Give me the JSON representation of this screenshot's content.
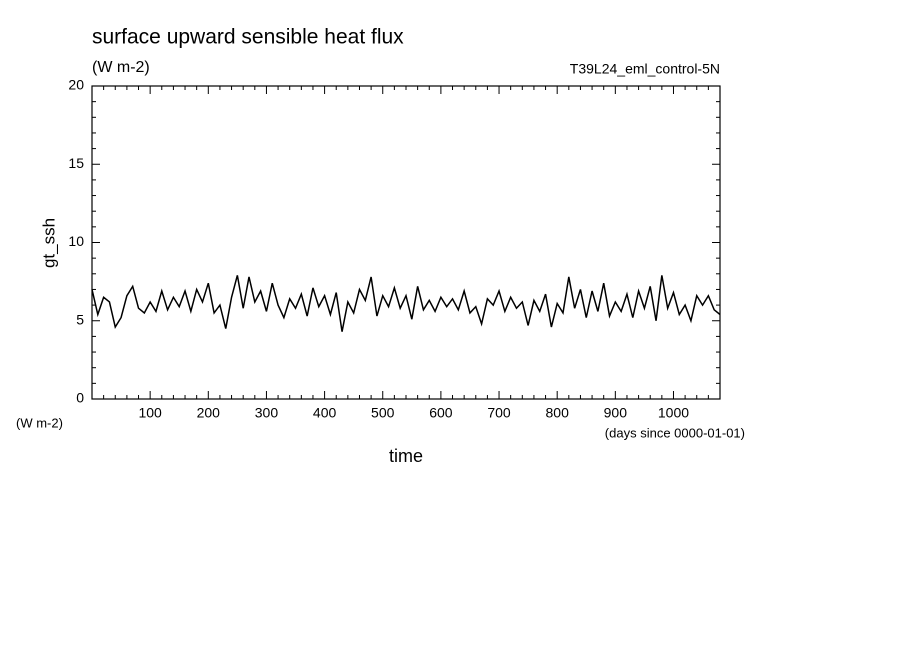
{
  "chart_data": {
    "type": "line",
    "title": "surface upward sensible heat flux",
    "subtitle": "(W m-2)",
    "annotation": "T39L24_eml_control-5N",
    "y_label": "gt_ssh",
    "y_units": "(W m-2)",
    "x_label": "time",
    "x_units": "(days since 0000-01-01)",
    "x": [
      0,
      10,
      20,
      30,
      40,
      50,
      60,
      70,
      80,
      90,
      100,
      110,
      120,
      130,
      140,
      150,
      160,
      170,
      180,
      190,
      200,
      210,
      220,
      230,
      240,
      250,
      260,
      270,
      280,
      290,
      300,
      310,
      320,
      330,
      340,
      350,
      360,
      370,
      380,
      390,
      400,
      410,
      420,
      430,
      440,
      450,
      460,
      470,
      480,
      490,
      500,
      510,
      520,
      530,
      540,
      550,
      560,
      570,
      580,
      590,
      600,
      610,
      620,
      630,
      640,
      650,
      660,
      670,
      680,
      690,
      700,
      710,
      720,
      730,
      740,
      750,
      760,
      770,
      780,
      790,
      800,
      810,
      820,
      830,
      840,
      850,
      860,
      870,
      880,
      890,
      900,
      910,
      920,
      930,
      940,
      950,
      960,
      970,
      980,
      990,
      1000,
      1010,
      1020,
      1030,
      1040,
      1050,
      1060,
      1070,
      1080
    ],
    "series": [
      {
        "color": "#000000",
        "values": [
          7.0,
          5.4,
          6.5,
          6.2,
          4.6,
          5.2,
          6.6,
          7.2,
          5.8,
          5.5,
          6.2,
          5.6,
          6.9,
          5.7,
          6.5,
          5.9,
          6.9,
          5.6,
          7.0,
          6.2,
          7.4,
          5.5,
          6.0,
          4.5,
          6.5,
          7.9,
          5.8,
          7.8,
          6.2,
          6.9,
          5.6,
          7.4,
          6.0,
          5.2,
          6.4,
          5.8,
          6.7,
          5.3,
          7.1,
          5.9,
          6.6,
          5.4,
          6.8,
          4.3,
          6.2,
          5.5,
          7.0,
          6.3,
          7.8,
          5.3,
          6.6,
          5.9,
          7.1,
          5.8,
          6.6,
          5.1,
          7.2,
          5.7,
          6.3,
          5.6,
          6.5,
          5.9,
          6.4,
          5.7,
          6.9,
          5.5,
          5.9,
          4.8,
          6.4,
          6.0,
          6.9,
          5.6,
          6.5,
          5.8,
          6.2,
          4.7,
          6.3,
          5.6,
          6.7,
          4.6,
          6.1,
          5.5,
          7.8,
          5.8,
          7.0,
          5.2,
          6.9,
          5.6,
          7.4,
          5.3,
          6.2,
          5.6,
          6.7,
          5.2,
          6.9,
          5.8,
          7.2,
          5.0,
          7.9,
          5.8,
          6.8,
          5.4,
          6.0,
          5.0,
          6.6,
          6.0,
          6.6,
          5.7,
          5.4
        ]
      }
    ],
    "xlim": [
      0,
      1080
    ],
    "ylim": [
      0,
      20
    ],
    "xticks": [
      100,
      200,
      300,
      400,
      500,
      600,
      700,
      800,
      900,
      1000
    ],
    "yticks": [
      0,
      5,
      10,
      15,
      20
    ],
    "xminorticks": [
      20,
      40,
      60,
      80,
      120,
      140,
      160,
      180,
      220,
      240,
      260,
      280,
      320,
      340,
      360,
      380,
      420,
      440,
      460,
      480,
      520,
      540,
      560,
      580,
      620,
      640,
      660,
      680,
      720,
      740,
      760,
      780,
      820,
      840,
      860,
      880,
      920,
      940,
      960,
      980,
      1020,
      1040,
      1060
    ],
    "yminorticks": [
      1,
      2,
      3,
      4,
      6,
      7,
      8,
      9,
      11,
      12,
      13,
      14,
      16,
      17,
      18,
      19
    ]
  }
}
